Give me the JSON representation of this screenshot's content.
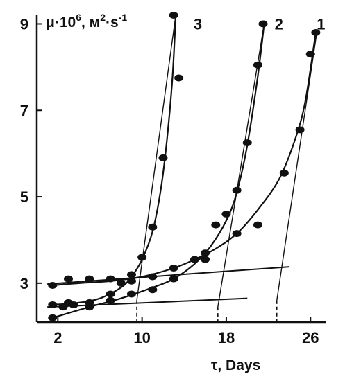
{
  "chart_data": {
    "type": "scatter",
    "ylabel_text": "μ·10",
    "ylabel_exp": "6",
    "ylabel_unit": ", м",
    "ylabel_unit_exp": "2",
    "ylabel_s": "·s",
    "ylabel_s_exp": "-1",
    "xlabel": "τ, Days",
    "xlim": [
      0,
      27.5
    ],
    "ylim": [
      2.1,
      9.2
    ],
    "x_ticks": [
      2,
      10,
      18,
      26
    ],
    "y_ticks": [
      3,
      5,
      7,
      9
    ],
    "series": [
      {
        "label": "1",
        "points": [
          [
            1.5,
            2.95
          ],
          [
            3,
            3.1
          ],
          [
            5,
            3.1
          ],
          [
            7,
            3.1
          ],
          [
            9,
            3.05
          ],
          [
            11,
            3.15
          ],
          [
            13,
            3.35
          ],
          [
            15,
            3.55
          ],
          [
            16,
            3.7
          ],
          [
            19,
            4.15
          ],
          [
            21,
            4.35
          ],
          [
            23.5,
            5.55
          ],
          [
            25,
            6.55
          ],
          [
            26,
            8.3
          ],
          [
            26.5,
            8.8
          ]
        ],
        "curve": [
          [
            1.5,
            2.95
          ],
          [
            4,
            3.0
          ],
          [
            7,
            3.05
          ],
          [
            10,
            3.15
          ],
          [
            13,
            3.35
          ],
          [
            15,
            3.55
          ],
          [
            17,
            3.8
          ],
          [
            19,
            4.15
          ],
          [
            21,
            4.7
          ],
          [
            23,
            5.4
          ],
          [
            24.5,
            6.3
          ],
          [
            25.5,
            7.2
          ],
          [
            26.5,
            8.8
          ]
        ],
        "baseline": [
          [
            1,
            2.98
          ],
          [
            24,
            3.38
          ]
        ],
        "tangent": [
          [
            22.8,
            2.6
          ],
          [
            26.6,
            8.8
          ]
        ],
        "dashed_x": 22.8
      },
      {
        "label": "2",
        "points": [
          [
            1.5,
            2.2
          ],
          [
            2.5,
            2.45
          ],
          [
            3.5,
            2.5
          ],
          [
            5,
            2.45
          ],
          [
            7,
            2.6
          ],
          [
            9,
            2.75
          ],
          [
            11,
            2.85
          ],
          [
            13,
            3.1
          ],
          [
            16,
            3.55
          ],
          [
            17,
            4.35
          ],
          [
            18,
            4.6
          ],
          [
            19,
            5.15
          ],
          [
            20,
            6.25
          ],
          [
            21,
            8.05
          ],
          [
            21.5,
            9.0
          ]
        ],
        "curve": [
          [
            1.5,
            2.2
          ],
          [
            5,
            2.45
          ],
          [
            8,
            2.65
          ],
          [
            11,
            2.9
          ],
          [
            13,
            3.1
          ],
          [
            15,
            3.45
          ],
          [
            16.5,
            3.85
          ],
          [
            18,
            4.45
          ],
          [
            19,
            5.1
          ],
          [
            20,
            6.2
          ],
          [
            21,
            7.8
          ],
          [
            21.6,
            9.0
          ]
        ],
        "baseline": [
          [
            1,
            2.45
          ],
          [
            20,
            2.65
          ]
        ],
        "tangent": [
          [
            17.2,
            2.45
          ],
          [
            21.6,
            9.0
          ]
        ],
        "dashed_x": 17.2
      },
      {
        "label": "3",
        "points": [
          [
            1.5,
            2.5
          ],
          [
            3,
            2.55
          ],
          [
            5,
            2.55
          ],
          [
            7,
            2.75
          ],
          [
            8,
            3.0
          ],
          [
            9,
            3.2
          ],
          [
            10,
            3.6
          ],
          [
            11,
            4.3
          ],
          [
            12,
            5.9
          ],
          [
            13.5,
            7.75
          ],
          [
            13,
            9.2
          ]
        ],
        "curve": [
          [
            1.5,
            2.5
          ],
          [
            4,
            2.55
          ],
          [
            6,
            2.65
          ],
          [
            8,
            2.9
          ],
          [
            9,
            3.15
          ],
          [
            10,
            3.55
          ],
          [
            11,
            4.2
          ],
          [
            11.8,
            5.2
          ],
          [
            12.4,
            6.4
          ],
          [
            12.9,
            7.8
          ],
          [
            13.2,
            9.2
          ]
        ],
        "baseline": [],
        "tangent": [
          [
            9.5,
            2.6
          ],
          [
            13.2,
            9.2
          ]
        ],
        "dashed_x": 9.5
      }
    ],
    "curve_labels": [
      {
        "text": "3",
        "x": 15.3,
        "y": 9.0
      },
      {
        "text": "2",
        "x": 23.0,
        "y": 9.0
      },
      {
        "text": "1",
        "x": 27.0,
        "y": 9.0
      }
    ]
  }
}
